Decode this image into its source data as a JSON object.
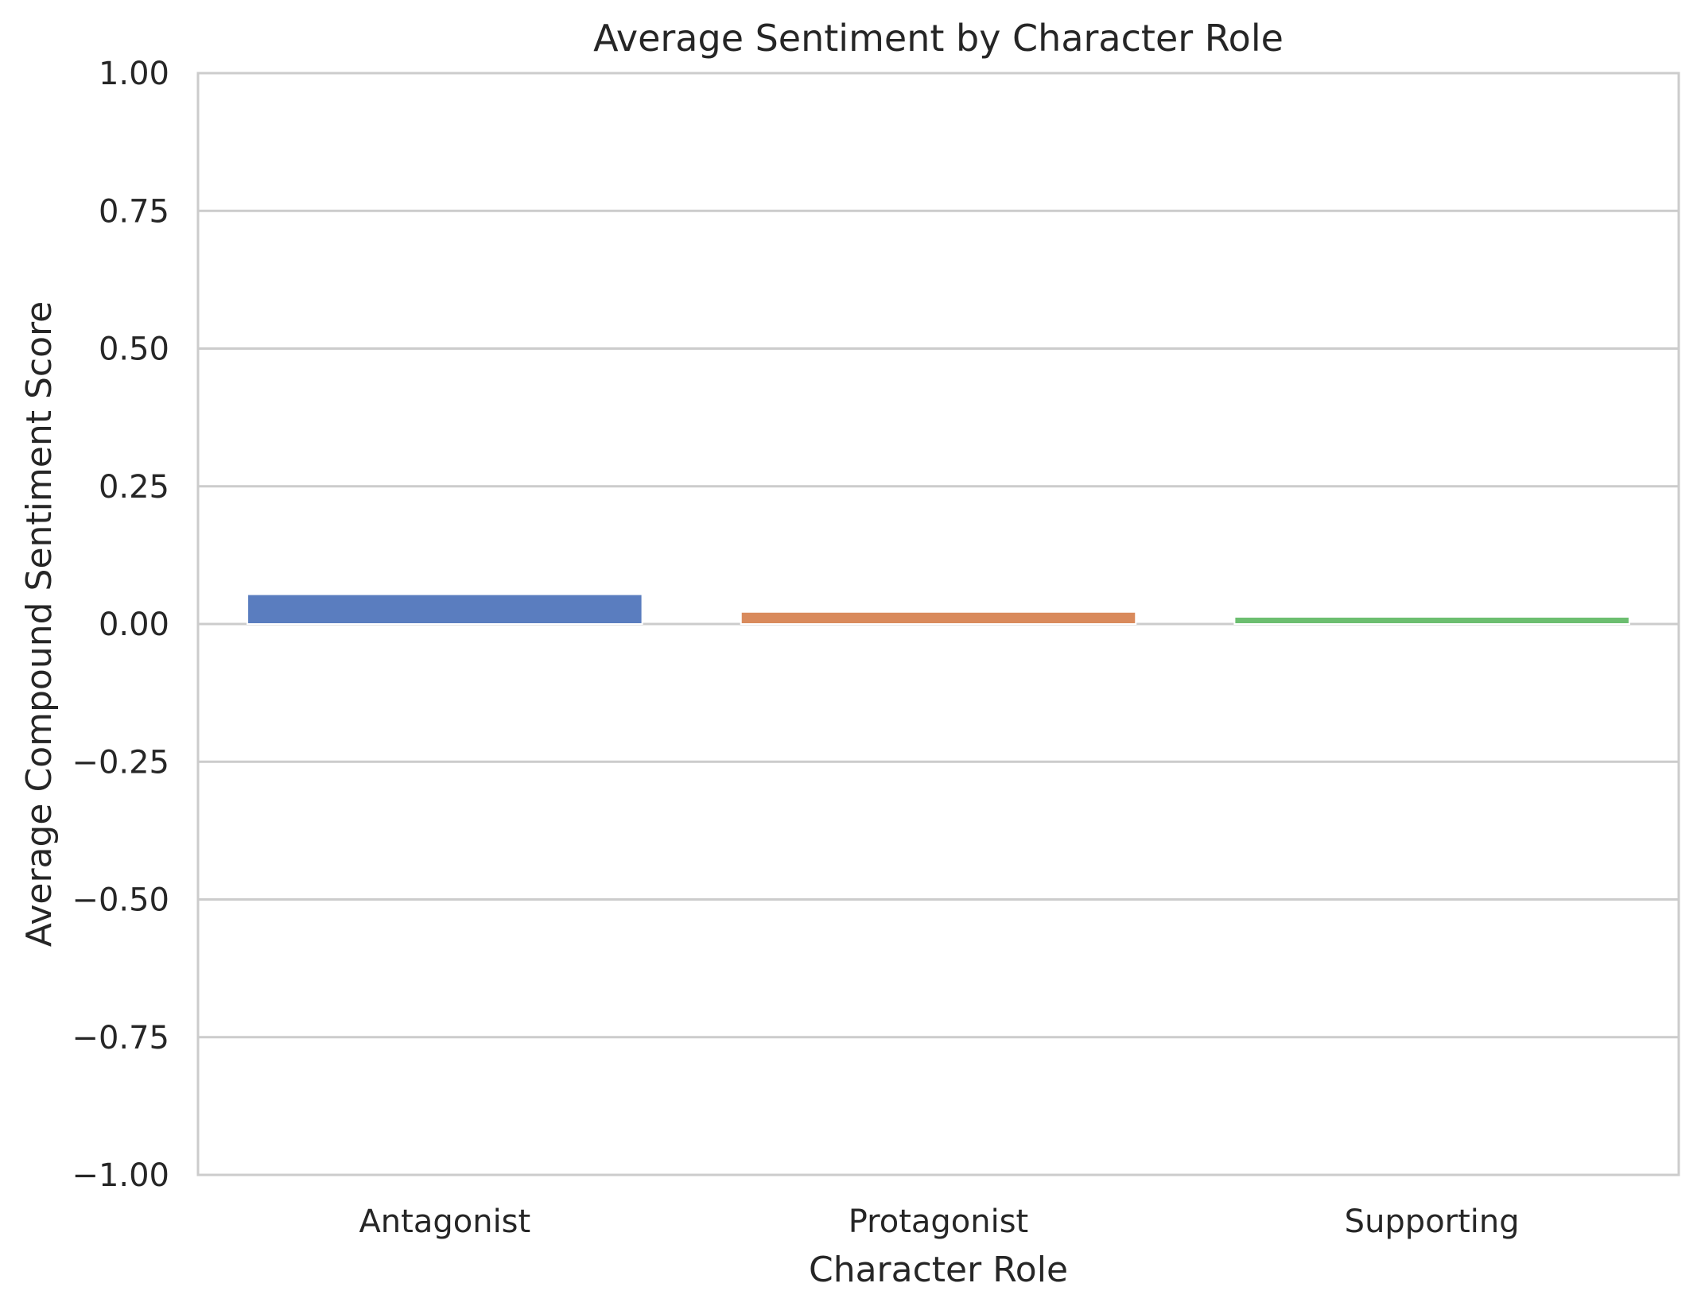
{
  "chart_data": {
    "type": "bar",
    "title": "Average Sentiment by Character Role",
    "xlabel": "Character Role",
    "ylabel": "Average Compound Sentiment Score",
    "categories": [
      "Antagonist",
      "Protagonist",
      "Supporting"
    ],
    "values": [
      0.054,
      0.022,
      0.013
    ],
    "colors": [
      "#5a7dbf",
      "#d98a5c",
      "#6cbe70"
    ],
    "ylim": [
      -1.0,
      1.0
    ],
    "yticks": [
      1.0,
      0.75,
      0.5,
      0.25,
      0.0,
      -0.25,
      -0.5,
      -0.75,
      -1.0
    ],
    "ytick_labels": [
      "1.00",
      "0.75",
      "0.50",
      "0.25",
      "0.00",
      "−0.25",
      "−0.50",
      "−0.75",
      "−1.00"
    ],
    "grid": true,
    "grid_axis": "y",
    "grid_color": "#cccccc",
    "frame_color": "#cccccc"
  }
}
